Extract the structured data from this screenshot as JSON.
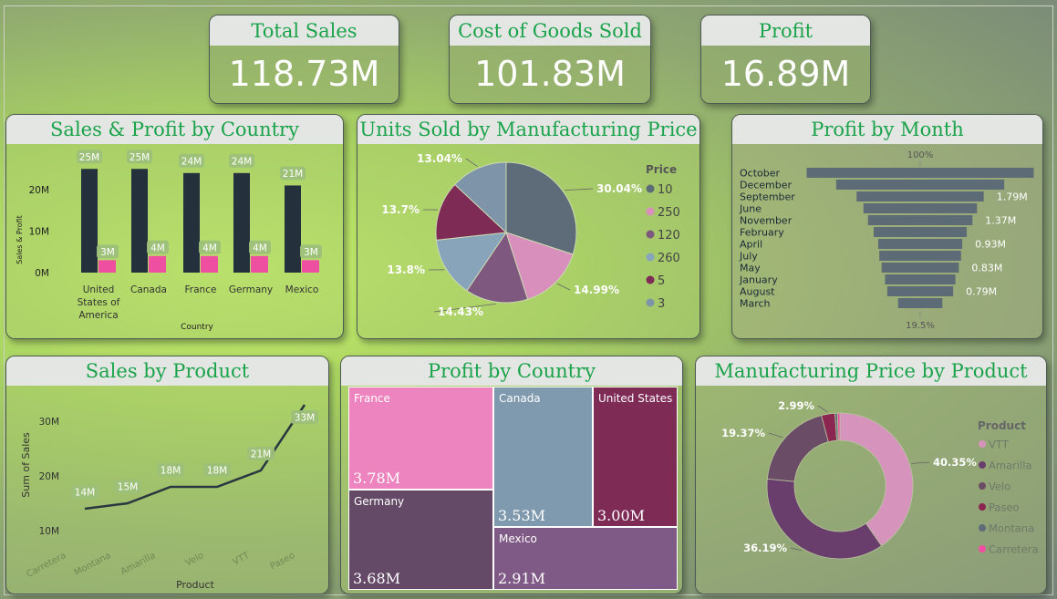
{
  "kpis": {
    "sales": {
      "label": "Total Sales",
      "value": "118.73M"
    },
    "cogs": {
      "label": "Cost of Goods Sold",
      "value": "101.83M"
    },
    "profit": {
      "label": "Profit",
      "value": "16.89M"
    }
  },
  "colors": {
    "accent_title": "#1aa34a",
    "dark_bar": "#25303d",
    "pink_bar": "#ef4fa0"
  },
  "chart_data": [
    {
      "id": "sales_profit_country",
      "type": "bar",
      "title": "Sales & Profit by Country",
      "xlabel": "Country",
      "ylabel": "Sales & Profit",
      "categories": [
        [
          "United",
          "States of",
          "America"
        ],
        [
          "Canada"
        ],
        [
          "France"
        ],
        [
          "Germany"
        ],
        [
          "Mexico"
        ]
      ],
      "series": [
        {
          "values": [
            25,
            25,
            24,
            24,
            21
          ],
          "labels": [
            "25M",
            "25M",
            "24M",
            "24M",
            "21M"
          ]
        },
        {
          "values": [
            3,
            4,
            4,
            4,
            3
          ],
          "labels": [
            "3M",
            "4M",
            "4M",
            "4M",
            "3M"
          ]
        }
      ],
      "yticks": [
        {
          "v": 0,
          "label": "0M"
        },
        {
          "v": 10,
          "label": "10M"
        },
        {
          "v": 20,
          "label": "20M"
        }
      ],
      "ylim": [
        0,
        25
      ],
      "grid": false
    },
    {
      "id": "units_by_price",
      "type": "pie",
      "title": "Units Sold by Manufacturing Price",
      "legend_title": "Price",
      "legend_position": "right",
      "slices": [
        {
          "name": "10",
          "value": 30.04,
          "label": "30.04%",
          "color": "#5d6c78"
        },
        {
          "name": "250",
          "value": 14.99,
          "label": "14.99%",
          "color": "#d98fbb"
        },
        {
          "name": "120",
          "value": 14.43,
          "label": "14.43%",
          "color": "#7f587f"
        },
        {
          "name": "260",
          "value": 13.8,
          "label": "13.8%",
          "color": "#88a4bb"
        },
        {
          "name": "5",
          "value": 13.7,
          "label": "13.7%",
          "color": "#7e2b55"
        },
        {
          "name": "3",
          "value": 13.04,
          "label": "13.04%",
          "color": "#7d94a9"
        }
      ]
    },
    {
      "id": "profit_by_month",
      "type": "bar",
      "title": "Profit by Month",
      "top_label": "100%",
      "bottom_label": "19.5%",
      "categories": [
        "October",
        "December",
        "September",
        "June",
        "November",
        "February",
        "April",
        "July",
        "May",
        "January",
        "August",
        "March"
      ],
      "values": [
        100,
        74,
        56,
        50,
        46,
        41,
        37,
        36,
        34,
        31,
        29,
        19.5
      ],
      "value_labels": {
        "2": "1.79M",
        "4": "1.37M",
        "6": "0.93M",
        "8": "0.83M",
        "10": "0.79M"
      },
      "color": "#5d6b76"
    },
    {
      "id": "sales_by_product",
      "type": "line",
      "title": "Sales by Product",
      "xlabel": "Product",
      "ylabel": "Sum of Sales",
      "categories": [
        "Carretera",
        "Montana",
        "Amarilla",
        "Velo",
        "VTT",
        "Paseo"
      ],
      "values": [
        14,
        15,
        18,
        18,
        21,
        33
      ],
      "labels": [
        "14M",
        "15M",
        "18M",
        "18M",
        "21M",
        "33M"
      ],
      "yticks": [
        {
          "v": 10,
          "label": "10M"
        },
        {
          "v": 20,
          "label": "20M"
        },
        {
          "v": 30,
          "label": "30M"
        }
      ],
      "ylim": [
        10,
        33
      ],
      "color": "#2a3640"
    },
    {
      "id": "profit_by_country",
      "type": "treemap",
      "title": "Profit by Country",
      "items": [
        {
          "name": "France",
          "value": 3.78,
          "label": "3.78M",
          "color": "#ee84bf"
        },
        {
          "name": "Germany",
          "value": 3.68,
          "label": "3.68M",
          "color": "#654a68"
        },
        {
          "name": "Canada",
          "value": 3.53,
          "label": "3.53M",
          "color": "#7f9aae"
        },
        {
          "name": "United States ...",
          "value": 3.0,
          "label": "3.00M",
          "color": "#7e2b55"
        },
        {
          "name": "Mexico",
          "value": 2.91,
          "label": "2.91M",
          "color": "#805a86"
        }
      ]
    },
    {
      "id": "price_by_product",
      "type": "pie",
      "title": "Manufacturing Price by Product",
      "legend_title": "Product",
      "legend_position": "right",
      "donut": true,
      "slices": [
        {
          "name": "VTT",
          "value": 40.35,
          "label": "40.35%",
          "color": "#d694bd"
        },
        {
          "name": "Amarilla",
          "value": 36.19,
          "label": "36.19%",
          "color": "#6a3e6c"
        },
        {
          "name": "Velo",
          "value": 19.37,
          "label": "19.37%",
          "color": "#6b4c66"
        },
        {
          "name": "Paseo",
          "value": 2.99,
          "label": "2.99%",
          "color": "#8a2650"
        },
        {
          "name": "Montana",
          "value": 0.55,
          "label": "",
          "color": "#5d6c78"
        },
        {
          "name": "Carretera",
          "value": 0.55,
          "label": "",
          "color": "#ef4fa0"
        }
      ]
    }
  ]
}
